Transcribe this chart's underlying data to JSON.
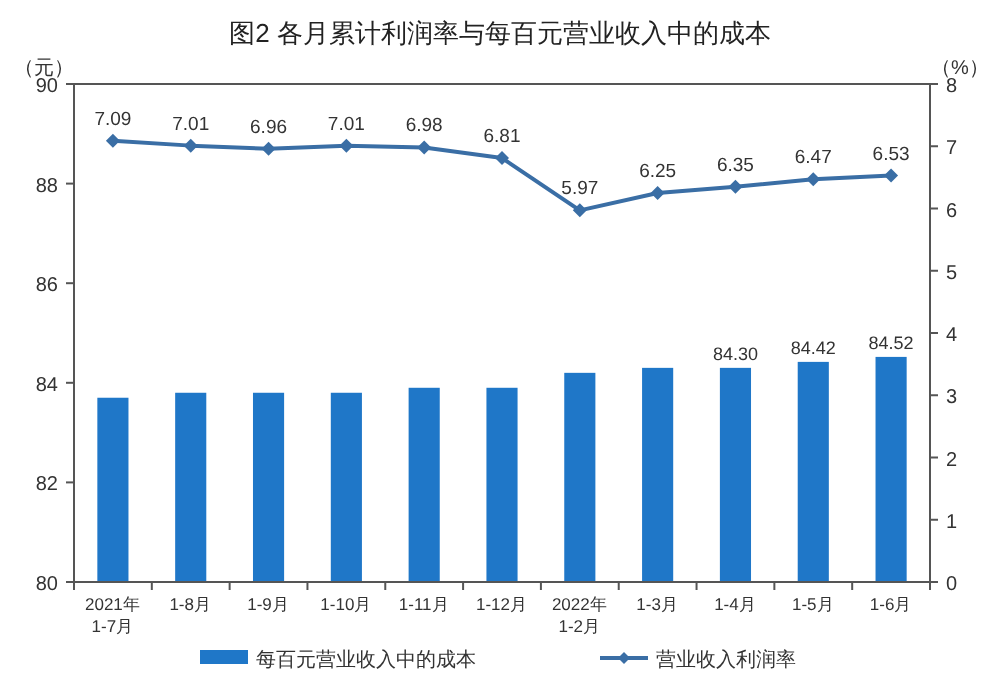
{
  "chart_data": {
    "type": "bar",
    "title": "图2  各月累计利润率与每百元营业收入中的成本",
    "ylabel": "（元）",
    "y2label": "（%）",
    "categories": [
      "2021年\n1-7月",
      "1-8月",
      "1-9月",
      "1-10月",
      "1-11月",
      "1-12月",
      "2022年\n1-2月",
      "1-3月",
      "1-4月",
      "1-5月",
      "1-6月"
    ],
    "series": [
      {
        "name": "每百元营业收入中的成本",
        "color": "#1f77c8",
        "values": [
          83.7,
          83.8,
          83.8,
          83.8,
          83.9,
          83.9,
          84.2,
          84.3,
          84.3,
          84.42,
          84.52
        ],
        "value_labels": [
          null,
          null,
          null,
          null,
          null,
          null,
          null,
          null,
          "84.30",
          "84.42",
          "84.52"
        ]
      },
      {
        "name": "营业收入利润率",
        "type": "line",
        "axis": "y2",
        "color": "#3a6ea5",
        "marker": "diamond",
        "values": [
          7.09,
          7.01,
          6.96,
          7.01,
          6.98,
          6.81,
          5.97,
          6.25,
          6.35,
          6.47,
          6.53
        ],
        "value_labels": [
          "7.09",
          "7.01",
          "6.96",
          "7.01",
          "6.98",
          "6.81",
          "5.97",
          "6.25",
          "6.35",
          "6.47",
          "6.53"
        ]
      }
    ],
    "ylim": [
      80,
      90
    ],
    "yticks": [
      80,
      82,
      84,
      86,
      88,
      90
    ],
    "y2lim": [
      0,
      8
    ],
    "y2ticks": [
      0,
      1,
      2,
      3,
      4,
      5,
      6,
      7,
      8
    ],
    "grid": false,
    "legend": "bottom"
  }
}
